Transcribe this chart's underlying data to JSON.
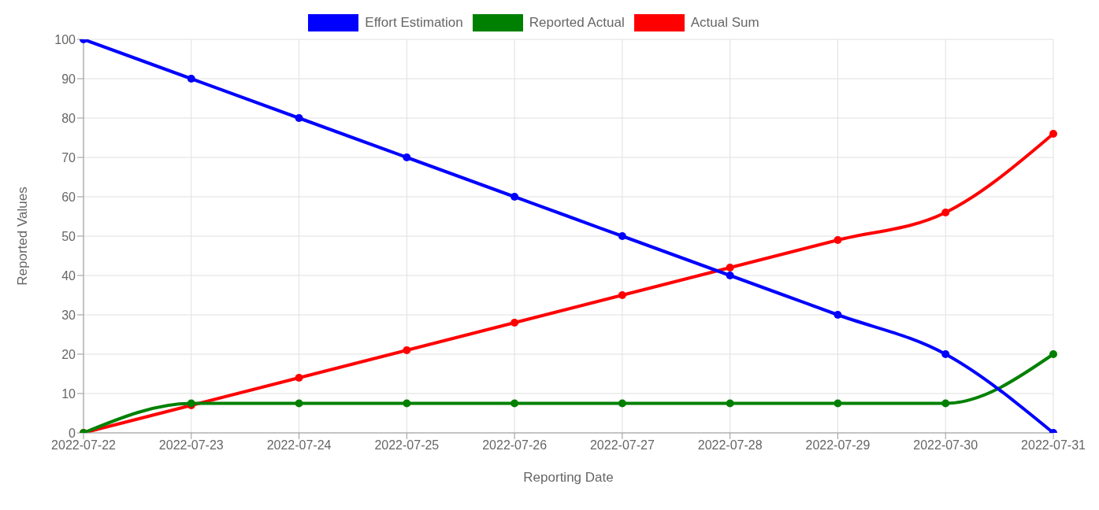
{
  "chart_data": {
    "type": "line",
    "xlabel": "Reporting Date",
    "ylabel": "Reported Values",
    "categories": [
      "2022-07-22",
      "2022-07-23",
      "2022-07-24",
      "2022-07-25",
      "2022-07-26",
      "2022-07-27",
      "2022-07-28",
      "2022-07-29",
      "2022-07-30",
      "2022-07-31"
    ],
    "series": [
      {
        "name": "Effort Estimation",
        "color": "#0000ff",
        "values": [
          100,
          90,
          80,
          70,
          60,
          50,
          40,
          30,
          20,
          0
        ]
      },
      {
        "name": "Reported Actual",
        "color": "#008000",
        "values": [
          0,
          7.5,
          7.5,
          7.5,
          7.5,
          7.5,
          7.5,
          7.5,
          7.5,
          20
        ]
      },
      {
        "name": "Actual Sum",
        "color": "#ff0000",
        "values": [
          0,
          7,
          14,
          21,
          28,
          35,
          42,
          49,
          56,
          76
        ]
      }
    ],
    "ylim": [
      0,
      100
    ],
    "yticks": [
      0,
      10,
      20,
      30,
      40,
      50,
      60,
      70,
      80,
      90,
      100
    ],
    "grid": true,
    "legend": "top",
    "marker": "circle",
    "line_style": "solid"
  }
}
